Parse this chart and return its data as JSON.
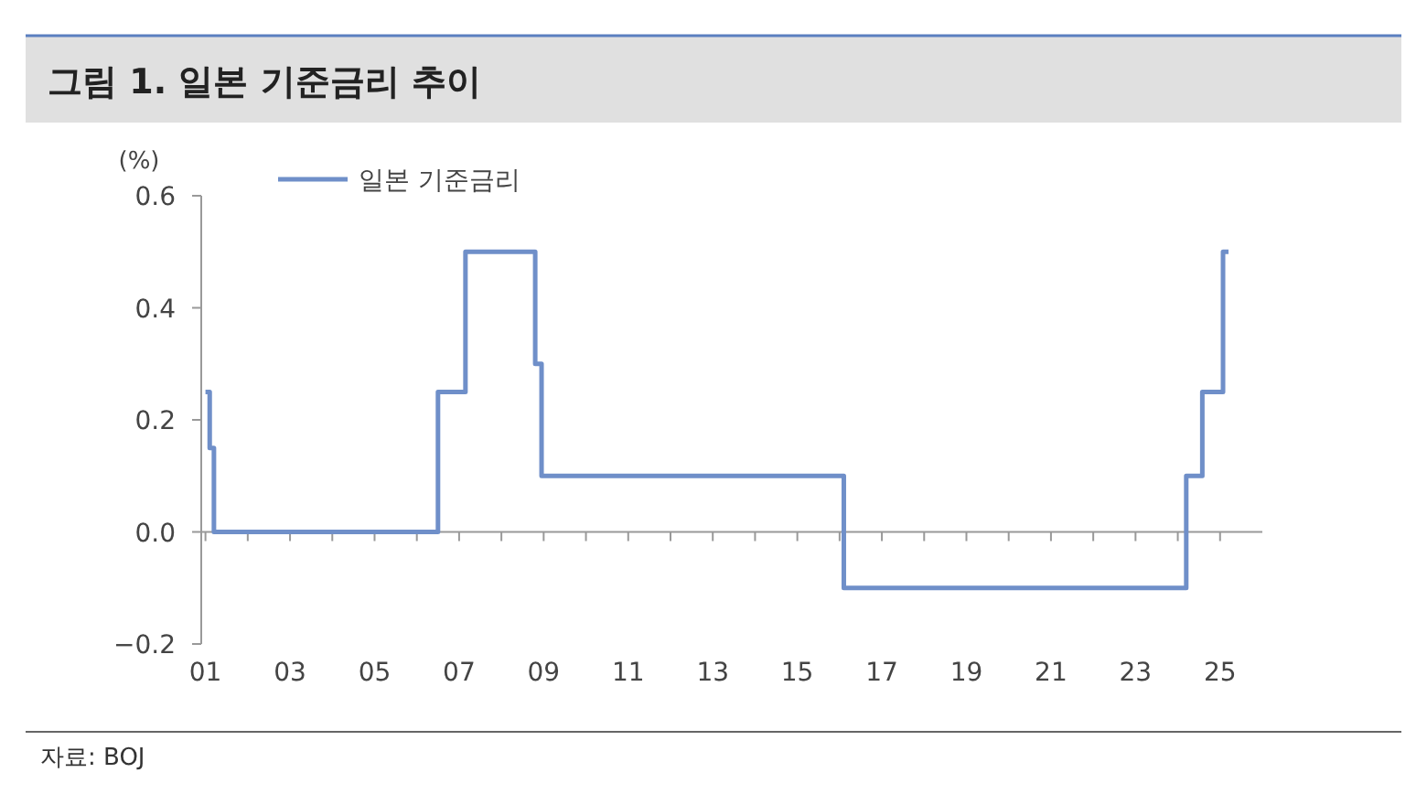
{
  "chart_data": {
    "type": "step",
    "title": "그림 1. 일본 기준금리 추이",
    "ylabel": "(%)",
    "legend": "top left",
    "annotations": [
      "자료: BOJ"
    ],
    "xlim": [
      2000.9,
      2026
    ],
    "xticks": [
      {
        "value": 2001,
        "label": "01"
      },
      {
        "value": 2002,
        "label": null
      },
      {
        "value": 2003,
        "label": "03"
      },
      {
        "value": 2004,
        "label": null
      },
      {
        "value": 2005,
        "label": "05"
      },
      {
        "value": 2006,
        "label": null
      },
      {
        "value": 2007,
        "label": "07"
      },
      {
        "value": 2008,
        "label": null
      },
      {
        "value": 2009,
        "label": "09"
      },
      {
        "value": 2010,
        "label": null
      },
      {
        "value": 2011,
        "label": "11"
      },
      {
        "value": 2012,
        "label": null
      },
      {
        "value": 2013,
        "label": "13"
      },
      {
        "value": 2014,
        "label": null
      },
      {
        "value": 2015,
        "label": "15"
      },
      {
        "value": 2016,
        "label": null
      },
      {
        "value": 2017,
        "label": "17"
      },
      {
        "value": 2018,
        "label": null
      },
      {
        "value": 2019,
        "label": "19"
      },
      {
        "value": 2020,
        "label": null
      },
      {
        "value": 2021,
        "label": "21"
      },
      {
        "value": 2022,
        "label": null
      },
      {
        "value": 2023,
        "label": "23"
      },
      {
        "value": 2024,
        "label": null
      },
      {
        "value": 2025,
        "label": "25"
      }
    ],
    "ylim": [
      -0.2,
      0.6
    ],
    "yticks": [
      {
        "value": -0.2,
        "label": "−0.2"
      },
      {
        "value": 0,
        "label": "0.0"
      },
      0.2,
      0.4,
      0.6
    ],
    "series": [
      {
        "name": "일본 기준금리",
        "color": "#6f8fc9",
        "x": [
          2001.0,
          2001.1,
          2001.2,
          2006.5,
          2007.15,
          2008.8,
          2008.95,
          2016.1,
          2024.2,
          2024.58,
          2025.07,
          2025.2
        ],
        "values": [
          0.25,
          0.15,
          0,
          0.25,
          0.5,
          0.3,
          0.1,
          -0.1,
          0.1,
          0.25,
          0.5,
          0.5
        ]
      }
    ]
  }
}
